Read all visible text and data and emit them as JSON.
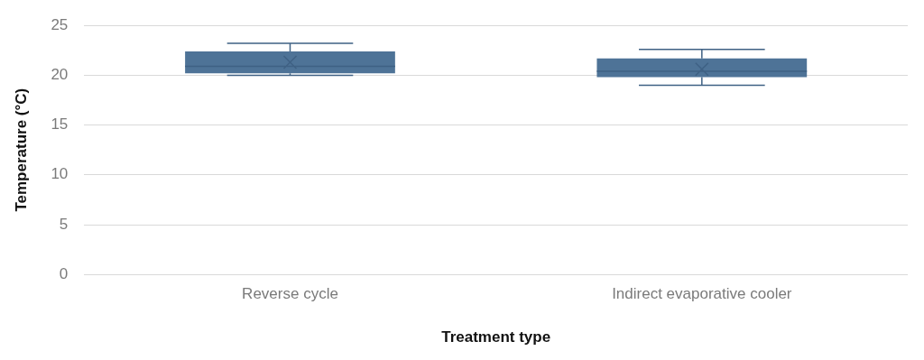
{
  "chart_data": {
    "type": "box",
    "xlabel": "Treatment type",
    "ylabel": "Temperature (°C)",
    "categories": [
      "Reverse cycle",
      "Indirect evaporative cooler"
    ],
    "color": "#4e7397",
    "ylim": [
      0,
      25
    ],
    "yticks": [
      0,
      5,
      10,
      15,
      20,
      25
    ],
    "grid": "y",
    "legend": false,
    "boxes": [
      {
        "low": 20.0,
        "q1": 20.2,
        "median": 20.9,
        "q3": 22.4,
        "high": 23.2,
        "mean": 21.3
      },
      {
        "low": 19.0,
        "q1": 19.8,
        "median": 20.4,
        "q3": 21.7,
        "high": 22.6,
        "mean": 20.6
      }
    ]
  }
}
